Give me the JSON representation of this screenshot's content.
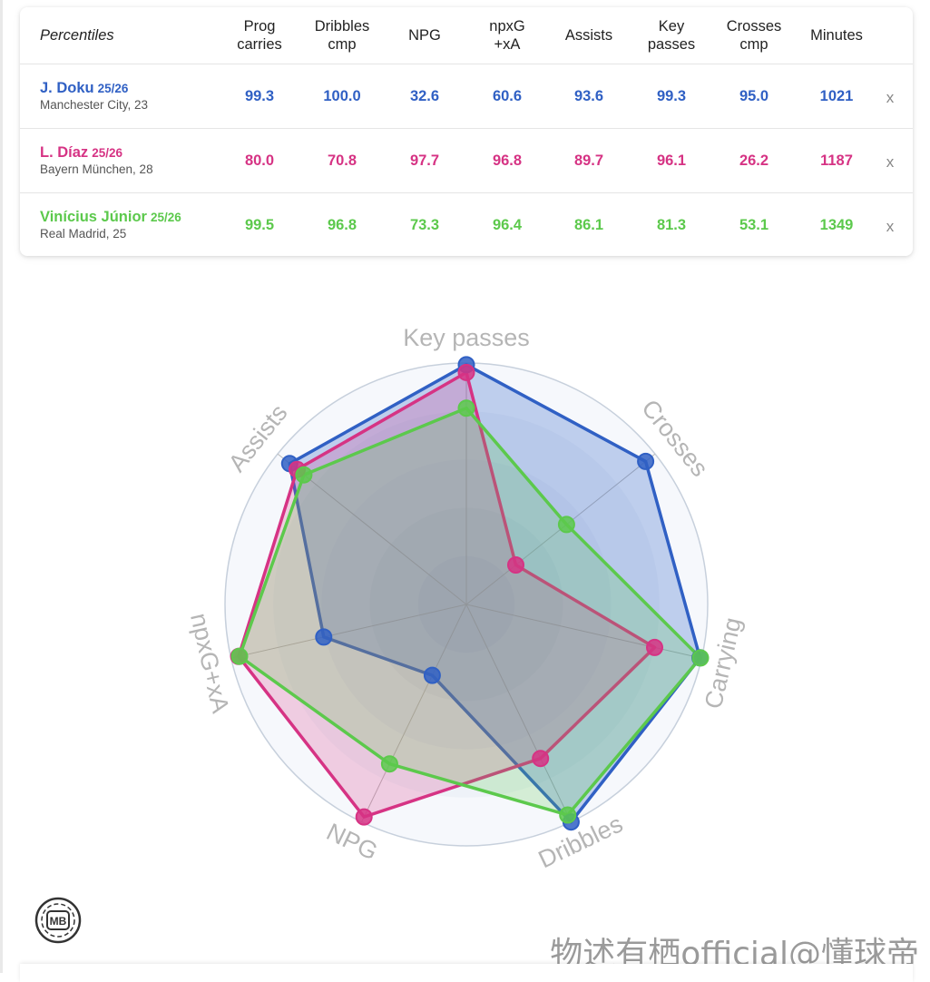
{
  "table": {
    "header": {
      "first": "Percentiles",
      "columns": [
        "Prog\ncarries",
        "Dribbles\ncmp",
        "NPG",
        "npxG\n+xA",
        "Assists",
        "Key\npasses",
        "Crosses\ncmp",
        "Minutes"
      ]
    },
    "players": [
      {
        "name": "J. Doku",
        "season": "25/26",
        "team": "Manchester City, 23",
        "values": [
          "99.3",
          "100.0",
          "32.6",
          "60.6",
          "93.6",
          "99.3",
          "95.0",
          "1021"
        ],
        "remove": "x",
        "color": "#3060c4"
      },
      {
        "name": "L. Díaz",
        "season": "25/26",
        "team": "Bayern München, 28",
        "values": [
          "80.0",
          "70.8",
          "97.7",
          "96.8",
          "89.7",
          "96.1",
          "26.2",
          "1187"
        ],
        "remove": "x",
        "color": "#d63384"
      },
      {
        "name": "Vinícius Júnior",
        "season": "25/26",
        "team": "Real Madrid, 25",
        "values": [
          "99.5",
          "96.8",
          "73.3",
          "96.4",
          "86.1",
          "81.3",
          "53.1",
          "1349"
        ],
        "remove": "x",
        "color": "#5cc94c"
      }
    ]
  },
  "chart_data": {
    "type": "radar",
    "axes": [
      "Key passes",
      "Crosses",
      "Carrying",
      "Dribbles",
      "NPG",
      "npxG+xA",
      "Assists"
    ],
    "range": [
      0,
      100
    ],
    "series": [
      {
        "name": "J. Doku",
        "color": "#3060c4",
        "values": [
          99.3,
          95.0,
          99.3,
          100.0,
          32.6,
          60.6,
          93.6
        ]
      },
      {
        "name": "L. Díaz",
        "color": "#d63384",
        "values": [
          96.1,
          26.2,
          80.0,
          70.8,
          97.7,
          96.8,
          89.7
        ]
      },
      {
        "name": "Vinícius Júnior",
        "color": "#5cc94c",
        "values": [
          81.3,
          53.1,
          99.5,
          96.8,
          73.3,
          96.4,
          86.1
        ]
      }
    ]
  },
  "logo": {
    "text": "MB"
  },
  "watermark": "物述有栖official@懂球帝"
}
